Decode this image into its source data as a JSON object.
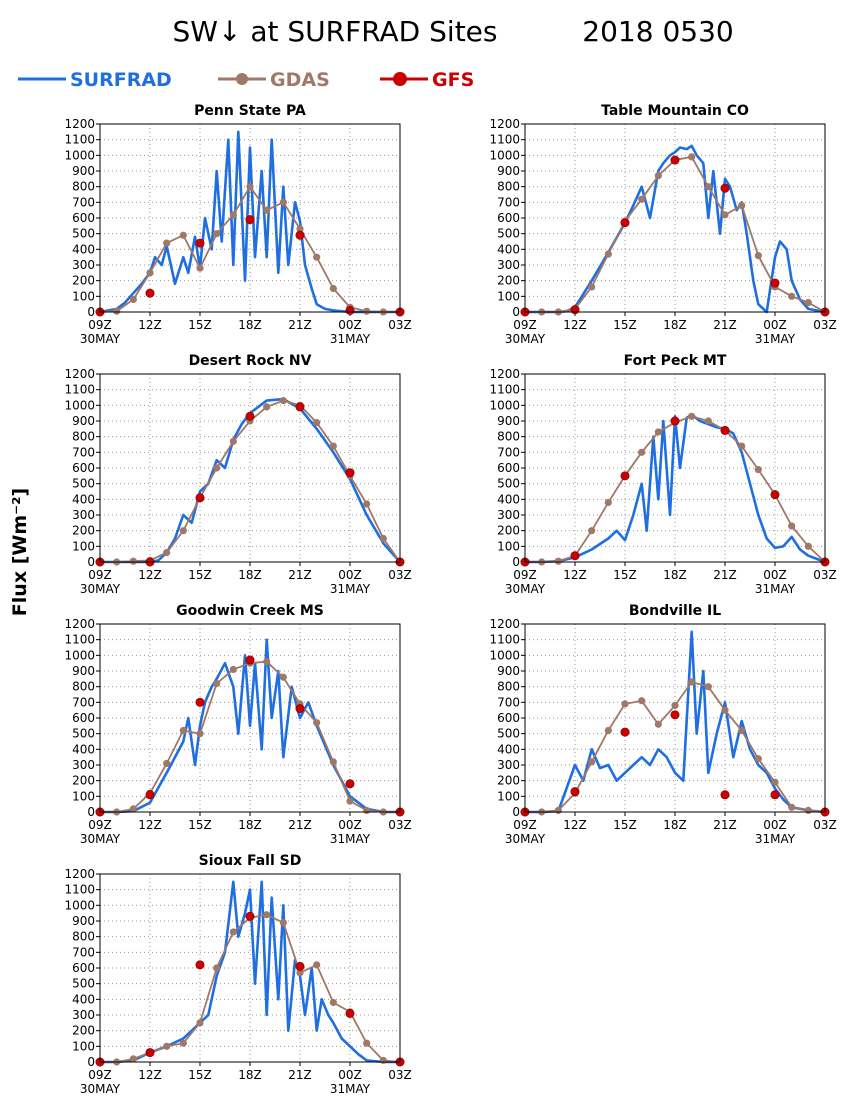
{
  "title": "SW↓ at SURFRAD Sites",
  "date": "2018 0530",
  "ylabel": "Flux [Wm⁻²]",
  "legend": [
    {
      "name": "SURFRAD",
      "color": "#1f6fe0"
    },
    {
      "name": "GDAS",
      "color": "#a07868"
    },
    {
      "name": "GFS",
      "color": "#cc0000"
    }
  ],
  "x_ticks": [
    "09Z",
    "12Z",
    "15Z",
    "18Z",
    "21Z",
    "00Z",
    "03Z"
  ],
  "x_date_labels": [
    "30MAY",
    "31MAY"
  ],
  "y_ticks": [
    0,
    100,
    200,
    300,
    400,
    500,
    600,
    700,
    800,
    900,
    1000,
    1100,
    1200
  ],
  "chart_data": [
    {
      "type": "line",
      "title": "Penn State PA",
      "xlim": [
        9,
        27
      ],
      "ylim": [
        0,
        1200
      ],
      "series": [
        {
          "name": "SURFRAD",
          "x": [
            9,
            10,
            10.5,
            11,
            11.5,
            12,
            12.3,
            12.7,
            13,
            13.5,
            14,
            14.3,
            14.7,
            15,
            15.3,
            15.7,
            16,
            16.3,
            16.7,
            17,
            17.3,
            17.7,
            18,
            18.3,
            18.7,
            19,
            19.3,
            19.7,
            20,
            20.3,
            20.7,
            21,
            21.3,
            21.7,
            22,
            22.5,
            23,
            24,
            25,
            26,
            27
          ],
          "y": [
            0,
            20,
            60,
            120,
            180,
            250,
            350,
            300,
            420,
            180,
            350,
            250,
            480,
            280,
            600,
            400,
            900,
            450,
            1100,
            300,
            1150,
            200,
            1050,
            350,
            900,
            350,
            1100,
            250,
            800,
            300,
            700,
            580,
            300,
            150,
            50,
            20,
            10,
            0,
            0,
            0,
            0
          ]
        },
        {
          "name": "GDAS",
          "x": [
            9,
            10,
            11,
            12,
            13,
            14,
            15,
            16,
            17,
            18,
            19,
            20,
            21,
            22,
            23,
            24,
            25,
            26,
            27
          ],
          "y": [
            0,
            5,
            80,
            250,
            440,
            490,
            280,
            500,
            620,
            800,
            650,
            700,
            530,
            350,
            150,
            30,
            5,
            0,
            0
          ]
        },
        {
          "name": "GFS",
          "x": [
            9,
            12,
            15,
            18,
            21,
            24,
            27
          ],
          "y": [
            0,
            120,
            440,
            590,
            490,
            10,
            0
          ]
        }
      ]
    },
    {
      "type": "line",
      "title": "Table Mountain CO",
      "xlim": [
        9,
        27
      ],
      "ylim": [
        0,
        1200
      ],
      "series": [
        {
          "name": "SURFRAD",
          "x": [
            9,
            10,
            11,
            11.5,
            12,
            13,
            14,
            15,
            15.5,
            16,
            16.5,
            17,
            17.3,
            17.7,
            18,
            18.3,
            18.7,
            19,
            19.3,
            19.7,
            20,
            20.3,
            20.7,
            21,
            21.3,
            21.7,
            22,
            22.3,
            22.7,
            23,
            23.5,
            24,
            24.3,
            24.7,
            25,
            25.5,
            26,
            27
          ],
          "y": [
            0,
            0,
            0,
            5,
            30,
            200,
            380,
            570,
            680,
            800,
            600,
            900,
            950,
            1000,
            1020,
            1050,
            1040,
            1060,
            1000,
            950,
            600,
            900,
            500,
            850,
            800,
            650,
            700,
            500,
            200,
            50,
            0,
            350,
            450,
            400,
            200,
            80,
            20,
            0
          ]
        },
        {
          "name": "GDAS",
          "x": [
            9,
            10,
            11,
            12,
            13,
            14,
            15,
            16,
            17,
            18,
            19,
            20,
            21,
            22,
            23,
            24,
            25,
            26,
            27
          ],
          "y": [
            0,
            0,
            0,
            20,
            160,
            370,
            580,
            720,
            870,
            970,
            990,
            800,
            620,
            680,
            360,
            160,
            100,
            60,
            0
          ]
        },
        {
          "name": "GFS",
          "x": [
            9,
            12,
            15,
            18,
            21,
            24,
            27
          ],
          "y": [
            0,
            15,
            570,
            970,
            790,
            185,
            0
          ]
        }
      ]
    },
    {
      "type": "line",
      "title": "Desert Rock NV",
      "xlim": [
        9,
        27
      ],
      "ylim": [
        0,
        1200
      ],
      "series": [
        {
          "name": "SURFRAD",
          "x": [
            9,
            10,
            11,
            12,
            12.5,
            13,
            13.5,
            14,
            14.5,
            15,
            15.5,
            16,
            16.5,
            17,
            17.5,
            18,
            19,
            20,
            21,
            22,
            23,
            24,
            25,
            26,
            27
          ],
          "y": [
            0,
            0,
            0,
            0,
            10,
            60,
            150,
            300,
            250,
            450,
            500,
            650,
            600,
            780,
            880,
            950,
            1030,
            1040,
            980,
            850,
            700,
            530,
            300,
            120,
            0
          ]
        },
        {
          "name": "GDAS",
          "x": [
            9,
            10,
            11,
            12,
            13,
            14,
            15,
            16,
            17,
            18,
            19,
            20,
            21,
            22,
            23,
            24,
            25,
            26,
            27
          ],
          "y": [
            0,
            0,
            5,
            10,
            60,
            200,
            410,
            600,
            770,
            900,
            990,
            1030,
            1000,
            890,
            740,
            550,
            370,
            150,
            0
          ]
        },
        {
          "name": "GFS",
          "x": [
            9,
            12,
            15,
            18,
            21,
            24,
            27
          ],
          "y": [
            0,
            0,
            410,
            930,
            990,
            570,
            0
          ]
        }
      ]
    },
    {
      "type": "line",
      "title": "Fort Peck MT",
      "xlim": [
        9,
        27
      ],
      "ylim": [
        0,
        1200
      ],
      "series": [
        {
          "name": "SURFRAD",
          "x": [
            9,
            10,
            11,
            12,
            13,
            14,
            14.5,
            15,
            15.5,
            16,
            16.3,
            16.7,
            17,
            17.3,
            17.7,
            18,
            18.3,
            18.7,
            19,
            19.5,
            20,
            20.5,
            21,
            21.5,
            22,
            22.5,
            23,
            23.5,
            24,
            24.5,
            25,
            25.5,
            26,
            27
          ],
          "y": [
            0,
            0,
            5,
            30,
            80,
            150,
            200,
            140,
            300,
            500,
            200,
            800,
            400,
            900,
            300,
            930,
            600,
            920,
            940,
            900,
            880,
            860,
            850,
            820,
            700,
            500,
            300,
            150,
            90,
            100,
            160,
            80,
            40,
            0
          ]
        },
        {
          "name": "GDAS",
          "x": [
            9,
            10,
            11,
            12,
            13,
            14,
            15,
            16,
            17,
            18,
            19,
            20,
            21,
            22,
            23,
            24,
            25,
            26,
            27
          ],
          "y": [
            0,
            0,
            5,
            40,
            200,
            380,
            550,
            700,
            830,
            890,
            930,
            900,
            840,
            740,
            590,
            430,
            230,
            100,
            0
          ]
        },
        {
          "name": "GFS",
          "x": [
            9,
            12,
            15,
            18,
            21,
            24,
            27
          ],
          "y": [
            0,
            40,
            550,
            900,
            840,
            430,
            0
          ]
        }
      ]
    },
    {
      "type": "line",
      "title": "Goodwin Creek MS",
      "xlim": [
        9,
        27
      ],
      "ylim": [
        0,
        1200
      ],
      "series": [
        {
          "name": "SURFRAD",
          "x": [
            9,
            10,
            11,
            12,
            13,
            14,
            14.3,
            14.7,
            15,
            15.3,
            15.7,
            16,
            16.5,
            17,
            17.3,
            17.7,
            18,
            18.3,
            18.7,
            19,
            19.3,
            19.7,
            20,
            20.5,
            21,
            21.5,
            22,
            23,
            24,
            25,
            26,
            27
          ],
          "y": [
            0,
            0,
            5,
            60,
            250,
            450,
            600,
            300,
            550,
            700,
            800,
            850,
            950,
            800,
            500,
            1000,
            550,
            950,
            400,
            1100,
            600,
            900,
            350,
            800,
            600,
            700,
            550,
            300,
            100,
            20,
            0,
            0
          ]
        },
        {
          "name": "GDAS",
          "x": [
            9,
            10,
            11,
            12,
            13,
            14,
            15,
            16,
            17,
            18,
            19,
            20,
            21,
            22,
            23,
            24,
            25,
            26,
            27
          ],
          "y": [
            0,
            0,
            20,
            120,
            310,
            520,
            500,
            820,
            910,
            950,
            960,
            860,
            690,
            570,
            320,
            70,
            10,
            0,
            0
          ]
        },
        {
          "name": "GFS",
          "x": [
            9,
            12,
            15,
            18,
            21,
            24,
            27
          ],
          "y": [
            0,
            110,
            700,
            970,
            660,
            180,
            0
          ]
        }
      ]
    },
    {
      "type": "line",
      "title": "Bondville IL",
      "xlim": [
        9,
        27
      ],
      "ylim": [
        0,
        1200
      ],
      "series": [
        {
          "name": "SURFRAD",
          "x": [
            9,
            10,
            11,
            12,
            12.5,
            13,
            13.5,
            14,
            14.5,
            15,
            15.5,
            16,
            16.5,
            17,
            17.5,
            18,
            18.5,
            19,
            19.3,
            19.7,
            20,
            20.5,
            21,
            21.5,
            22,
            22.5,
            23,
            23.5,
            24,
            24.5,
            25,
            26,
            27
          ],
          "y": [
            0,
            0,
            5,
            300,
            200,
            400,
            280,
            300,
            200,
            250,
            300,
            350,
            300,
            400,
            350,
            250,
            200,
            1150,
            500,
            900,
            250,
            500,
            700,
            350,
            580,
            400,
            300,
            250,
            150,
            80,
            30,
            10,
            0
          ]
        },
        {
          "name": "GDAS",
          "x": [
            9,
            10,
            11,
            12,
            13,
            14,
            15,
            16,
            17,
            18,
            19,
            20,
            21,
            22,
            23,
            24,
            25,
            26,
            27
          ],
          "y": [
            0,
            0,
            10,
            120,
            320,
            520,
            690,
            710,
            560,
            680,
            830,
            800,
            650,
            520,
            340,
            190,
            30,
            10,
            0
          ]
        },
        {
          "name": "GFS",
          "x": [
            9,
            12,
            15,
            18,
            21,
            24,
            27
          ],
          "y": [
            0,
            130,
            510,
            620,
            110,
            110,
            0
          ]
        }
      ]
    },
    {
      "type": "line",
      "title": "Sioux Fall SD",
      "xlim": [
        9,
        27
      ],
      "ylim": [
        0,
        1200
      ],
      "series": [
        {
          "name": "SURFRAD",
          "x": [
            9,
            10,
            11,
            12,
            13,
            14,
            14.5,
            15,
            15.5,
            16,
            16.5,
            17,
            17.3,
            17.7,
            18,
            18.3,
            18.7,
            19,
            19.3,
            19.7,
            20,
            20.3,
            20.7,
            21,
            21.3,
            21.7,
            22,
            22.3,
            22.7,
            23,
            23.5,
            24,
            24.5,
            25,
            26,
            27
          ],
          "y": [
            0,
            0,
            10,
            60,
            100,
            150,
            200,
            250,
            300,
            550,
            700,
            1150,
            800,
            950,
            1100,
            500,
            1150,
            300,
            1050,
            400,
            1000,
            200,
            650,
            550,
            300,
            600,
            200,
            400,
            300,
            250,
            150,
            100,
            50,
            10,
            0,
            0
          ]
        },
        {
          "name": "GDAS",
          "x": [
            9,
            10,
            11,
            12,
            13,
            14,
            15,
            16,
            17,
            18,
            19,
            20,
            21,
            22,
            23,
            24,
            25,
            26,
            27
          ],
          "y": [
            0,
            0,
            20,
            60,
            100,
            120,
            250,
            600,
            830,
            920,
            940,
            890,
            570,
            620,
            380,
            320,
            120,
            10,
            0
          ]
        },
        {
          "name": "GFS",
          "x": [
            9,
            12,
            15,
            18,
            21,
            24,
            27
          ],
          "y": [
            0,
            60,
            620,
            930,
            610,
            310,
            0
          ]
        }
      ]
    }
  ]
}
